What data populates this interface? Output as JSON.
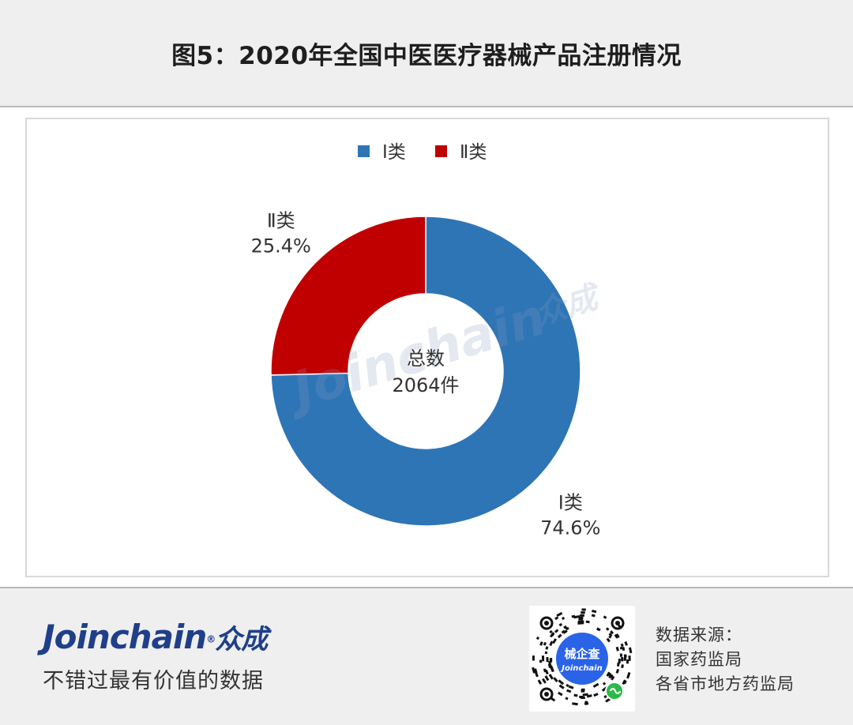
{
  "title": "图5：2020年全国中医医疗器械产品注册情况",
  "chart_data": {
    "type": "pie",
    "donut": true,
    "series": [
      {
        "name": "Ⅰ类",
        "value": 74.6,
        "label": "74.6%",
        "color": "#2e75b6"
      },
      {
        "name": "Ⅱ类",
        "value": 25.4,
        "label": "25.4%",
        "color": "#c00000"
      }
    ],
    "center_label": [
      "总数",
      "2064件"
    ],
    "legend": {
      "position": "top",
      "items": [
        "Ⅰ类",
        "Ⅱ类"
      ]
    }
  },
  "watermark": {
    "latin": "Joinchain",
    "cn": "众成"
  },
  "footer": {
    "brand_logo": "Joinchain",
    "brand_logo_cn": "众成",
    "slogan": "不错过最有价值的数据",
    "qr": {
      "center_label": "械企查",
      "sub_label": "Joinchain"
    },
    "source_title": "数据来源：",
    "source_lines": [
      "国家药监局",
      "各省市地方药监局"
    ]
  }
}
